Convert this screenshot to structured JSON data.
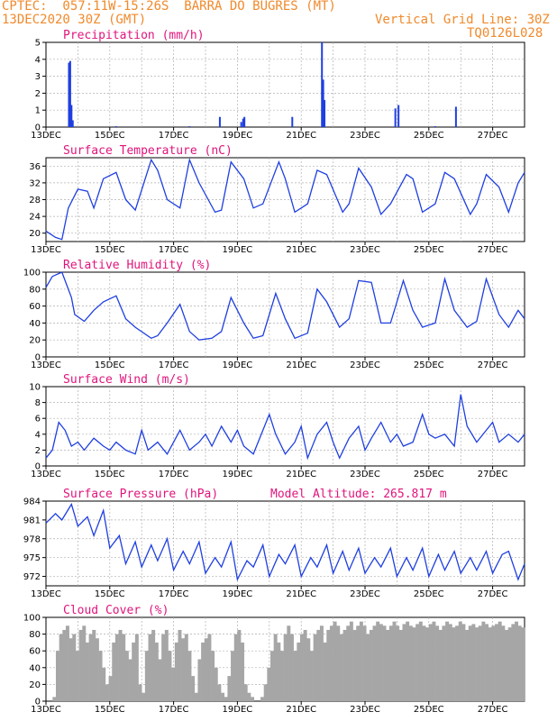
{
  "header": {
    "line1": "CPTEC:  057:11W-15:26S  BARRA DO BUGRES (MT)",
    "line2": "13DEC2020 30Z (GMT)",
    "grid_note": "Vertical Grid Line: 30Z",
    "code": "TQ0126L028"
  },
  "colors": {
    "header": "#f08a2c",
    "title": "#e0147c",
    "series": "#1f3fe0",
    "cloud": "#a6a6a6",
    "grid": "#b0b0b0"
  },
  "chart_data": [
    {
      "type": "bar",
      "title": "Precipitation (mm/h)",
      "x_labels": [
        "13DEC",
        "15DEC",
        "17DEC",
        "19DEC",
        "21DEC",
        "23DEC",
        "25DEC",
        "27DEC"
      ],
      "x_range_days": [
        0,
        15
      ],
      "ylim": [
        0,
        5
      ],
      "yticks": [
        0,
        1,
        2,
        3,
        4,
        5
      ],
      "bars": [
        {
          "day": 0.72,
          "value": 3.8
        },
        {
          "day": 0.76,
          "value": 3.9
        },
        {
          "day": 0.8,
          "value": 1.3
        },
        {
          "day": 0.84,
          "value": 0.4
        },
        {
          "day": 5.45,
          "value": 0.6
        },
        {
          "day": 6.12,
          "value": 0.3
        },
        {
          "day": 6.18,
          "value": 0.5
        },
        {
          "day": 6.22,
          "value": 0.6
        },
        {
          "day": 7.72,
          "value": 0.6
        },
        {
          "day": 8.65,
          "value": 5.0
        },
        {
          "day": 8.69,
          "value": 2.8
        },
        {
          "day": 8.73,
          "value": 1.6
        },
        {
          "day": 10.95,
          "value": 1.1
        },
        {
          "day": 11.05,
          "value": 1.3
        },
        {
          "day": 12.85,
          "value": 1.2
        },
        {
          "day": 2.2,
          "value": 0.05
        },
        {
          "day": 4.5,
          "value": 0.05
        },
        {
          "day": 12.2,
          "value": 0.05
        }
      ]
    },
    {
      "type": "line",
      "title": "Surface Temperature (nC)",
      "x_labels": [
        "13DEC",
        "15DEC",
        "17DEC",
        "19DEC",
        "21DEC",
        "23DEC",
        "25DEC",
        "27DEC"
      ],
      "x_range_days": [
        0,
        15
      ],
      "ylim": [
        18,
        38
      ],
      "yticks": [
        20,
        24,
        28,
        32,
        36
      ],
      "x": [
        0.0,
        0.3,
        0.5,
        0.7,
        1.0,
        1.3,
        1.5,
        1.8,
        2.2,
        2.5,
        2.8,
        3.3,
        3.5,
        3.8,
        4.2,
        4.5,
        4.8,
        5.3,
        5.5,
        5.8,
        6.2,
        6.5,
        6.8,
        7.3,
        7.5,
        7.8,
        8.2,
        8.5,
        8.8,
        9.3,
        9.5,
        9.8,
        10.2,
        10.5,
        10.8,
        11.3,
        11.5,
        11.8,
        12.2,
        12.5,
        12.8,
        13.3,
        13.5,
        13.8,
        14.2,
        14.5,
        14.8,
        15.0
      ],
      "y": [
        20.5,
        19.0,
        18.5,
        26.0,
        30.5,
        30.0,
        26.0,
        33.0,
        34.5,
        28.0,
        25.5,
        37.5,
        35.0,
        28.0,
        26.0,
        37.5,
        32.0,
        25.0,
        25.5,
        37.0,
        33.0,
        26.0,
        27.0,
        37.0,
        33.0,
        25.0,
        27.0,
        35.0,
        34.0,
        25.0,
        27.0,
        35.5,
        31.0,
        24.5,
        27.0,
        34.0,
        33.0,
        25.0,
        27.0,
        34.5,
        33.0,
        24.5,
        27.0,
        34.0,
        31.0,
        25.0,
        32.0,
        34.5
      ]
    },
    {
      "type": "line",
      "title": "Relative Humidity (%)",
      "x_labels": [
        "13DEC",
        "15DEC",
        "17DEC",
        "19DEC",
        "21DEC",
        "23DEC",
        "25DEC",
        "27DEC"
      ],
      "x_range_days": [
        0,
        15
      ],
      "ylim": [
        0,
        100
      ],
      "yticks": [
        0,
        20,
        40,
        60,
        80,
        100
      ],
      "x": [
        0.0,
        0.2,
        0.5,
        0.8,
        0.9,
        1.2,
        1.5,
        1.8,
        2.2,
        2.5,
        2.8,
        3.3,
        3.5,
        3.8,
        4.2,
        4.5,
        4.8,
        5.2,
        5.5,
        5.8,
        6.2,
        6.5,
        6.8,
        7.2,
        7.5,
        7.8,
        8.2,
        8.5,
        8.8,
        9.2,
        9.5,
        9.8,
        10.2,
        10.5,
        10.8,
        11.2,
        11.5,
        11.8,
        12.2,
        12.5,
        12.8,
        13.2,
        13.5,
        13.8,
        14.2,
        14.5,
        14.8,
        15.0
      ],
      "y": [
        82,
        95,
        100,
        70,
        50,
        42,
        55,
        65,
        72,
        45,
        35,
        22,
        25,
        40,
        62,
        30,
        20,
        22,
        30,
        70,
        40,
        22,
        25,
        75,
        45,
        22,
        28,
        80,
        65,
        35,
        45,
        90,
        88,
        40,
        40,
        90,
        55,
        35,
        40,
        92,
        55,
        35,
        42,
        92,
        50,
        35,
        55,
        45
      ]
    },
    {
      "type": "line",
      "title": "Surface Wind (m/s)",
      "x_labels": [
        "13DEC",
        "15DEC",
        "17DEC",
        "19DEC",
        "21DEC",
        "23DEC",
        "25DEC",
        "27DEC"
      ],
      "x_range_days": [
        0,
        15
      ],
      "ylim": [
        0,
        10
      ],
      "yticks": [
        0,
        2,
        4,
        6,
        8,
        10
      ],
      "x": [
        0.0,
        0.2,
        0.4,
        0.6,
        0.8,
        1.0,
        1.2,
        1.5,
        1.8,
        2.0,
        2.2,
        2.5,
        2.8,
        3.0,
        3.2,
        3.5,
        3.8,
        4.0,
        4.2,
        4.5,
        4.8,
        5.0,
        5.2,
        5.5,
        5.8,
        6.0,
        6.2,
        6.5,
        6.8,
        7.0,
        7.2,
        7.5,
        7.8,
        8.0,
        8.2,
        8.5,
        8.8,
        9.0,
        9.2,
        9.5,
        9.8,
        10.0,
        10.2,
        10.5,
        10.8,
        11.0,
        11.2,
        11.5,
        11.8,
        12.0,
        12.2,
        12.5,
        12.8,
        13.0,
        13.2,
        13.5,
        13.8,
        14.0,
        14.2,
        14.5,
        14.8,
        15.0
      ],
      "y": [
        1.0,
        2.0,
        5.5,
        4.5,
        2.5,
        3.0,
        2.0,
        3.5,
        2.5,
        2.0,
        3.0,
        2.0,
        1.5,
        4.5,
        2.0,
        3.0,
        1.5,
        3.0,
        4.5,
        2.0,
        3.0,
        4.0,
        2.5,
        5.0,
        3.0,
        4.5,
        2.5,
        1.5,
        4.5,
        6.5,
        4.0,
        1.5,
        3.0,
        5.0,
        1.0,
        4.0,
        5.5,
        3.0,
        1.0,
        3.5,
        5.0,
        2.0,
        3.5,
        5.5,
        3.0,
        4.0,
        2.5,
        3.0,
        6.5,
        4.0,
        3.5,
        4.0,
        2.5,
        9.0,
        5.0,
        3.0,
        4.5,
        5.5,
        3.0,
        4.0,
        3.0,
        4.0
      ]
    },
    {
      "type": "line",
      "title": "Surface Pressure (hPa)",
      "annotation": "Model Altitude: 265.817 m",
      "x_labels": [
        "13DEC",
        "15DEC",
        "17DEC",
        "19DEC",
        "21DEC",
        "23DEC",
        "25DEC",
        "27DEC"
      ],
      "x_range_days": [
        0,
        15
      ],
      "ylim": [
        970.5,
        984
      ],
      "yticks": [
        972,
        975,
        978,
        981,
        984
      ],
      "x": [
        0.0,
        0.3,
        0.5,
        0.8,
        1.0,
        1.3,
        1.5,
        1.8,
        2.0,
        2.3,
        2.5,
        2.8,
        3.0,
        3.3,
        3.5,
        3.8,
        4.0,
        4.3,
        4.5,
        4.8,
        5.0,
        5.3,
        5.5,
        5.8,
        6.0,
        6.3,
        6.5,
        6.8,
        7.0,
        7.3,
        7.5,
        7.8,
        8.0,
        8.3,
        8.5,
        8.8,
        9.0,
        9.3,
        9.5,
        9.8,
        10.0,
        10.3,
        10.5,
        10.8,
        11.0,
        11.3,
        11.5,
        11.8,
        12.0,
        12.3,
        12.5,
        12.8,
        13.0,
        13.3,
        13.5,
        13.8,
        14.0,
        14.3,
        14.5,
        14.8,
        15.0
      ],
      "y": [
        980.5,
        982.0,
        981.0,
        983.5,
        980.0,
        981.5,
        978.5,
        982.5,
        976.5,
        978.5,
        974.0,
        977.5,
        973.5,
        977.0,
        974.5,
        978.0,
        973.0,
        976.0,
        974.0,
        977.5,
        972.5,
        975.0,
        973.5,
        977.5,
        971.5,
        974.5,
        973.5,
        977.0,
        972.0,
        975.5,
        974.0,
        977.0,
        972.0,
        975.0,
        973.5,
        977.0,
        972.5,
        976.0,
        973.0,
        976.5,
        972.5,
        975.0,
        973.5,
        976.5,
        972.0,
        975.0,
        973.0,
        976.5,
        972.0,
        975.5,
        973.0,
        976.0,
        972.5,
        975.0,
        973.0,
        976.0,
        972.5,
        975.5,
        976.0,
        971.5,
        974.0
      ]
    },
    {
      "type": "bar",
      "title": "Cloud Cover (%)",
      "x_labels": [
        "13DEC",
        "15DEC",
        "17DEC",
        "19DEC",
        "21DEC",
        "23DEC",
        "25DEC",
        "27DEC"
      ],
      "x_range_days": [
        0,
        15
      ],
      "ylim": [
        0,
        100
      ],
      "yticks": [
        0,
        20,
        40,
        60,
        80,
        100
      ],
      "values": [
        0,
        0,
        5,
        60,
        80,
        85,
        90,
        75,
        80,
        60,
        85,
        90,
        70,
        80,
        85,
        75,
        60,
        40,
        20,
        30,
        70,
        80,
        85,
        80,
        60,
        50,
        70,
        80,
        20,
        10,
        60,
        80,
        85,
        70,
        50,
        80,
        85,
        60,
        40,
        70,
        85,
        75,
        80,
        60,
        30,
        10,
        50,
        70,
        75,
        80,
        60,
        40,
        20,
        10,
        5,
        30,
        60,
        80,
        85,
        70,
        20,
        10,
        5,
        0,
        0,
        5,
        20,
        40,
        60,
        80,
        70,
        60,
        80,
        90,
        80,
        60,
        70,
        80,
        85,
        75,
        60,
        80,
        85,
        90,
        70,
        85,
        90,
        95,
        90,
        80,
        85,
        90,
        95,
        85,
        90,
        95,
        90,
        80,
        85,
        90,
        95,
        92,
        90,
        85,
        90,
        95,
        90,
        85,
        92,
        95,
        90,
        88,
        92,
        95,
        90,
        88,
        92,
        95,
        90,
        85,
        90,
        95,
        92,
        88,
        90,
        95,
        92,
        85,
        90,
        92,
        88,
        90,
        95,
        92,
        88,
        90,
        92,
        95,
        90,
        85,
        88,
        92,
        95,
        90,
        88
      ]
    }
  ]
}
